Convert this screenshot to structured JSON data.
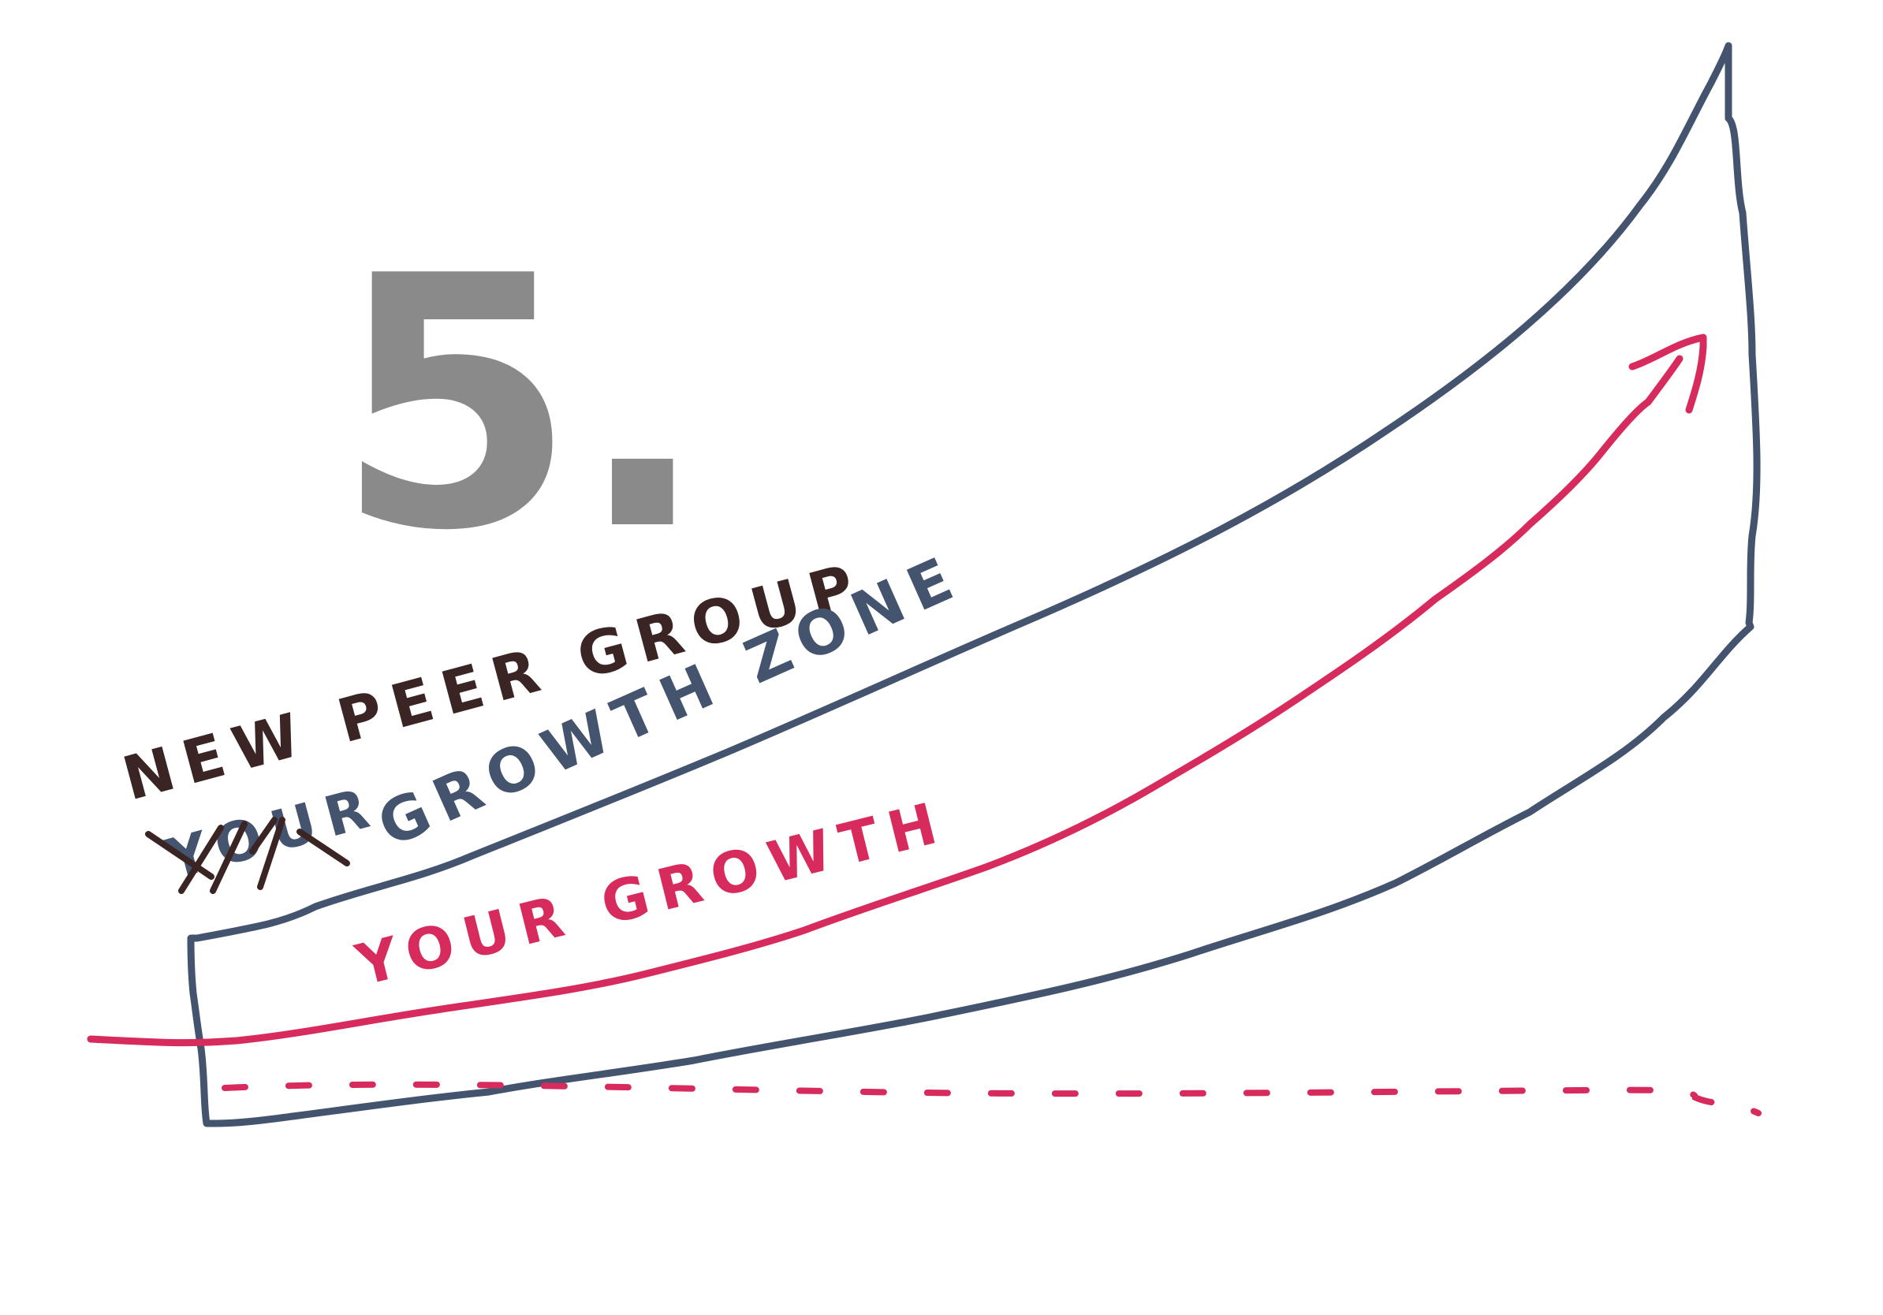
{
  "step_number": "5.",
  "labels": {
    "new_peer_group": "NEW PEER GROUP",
    "struck_text": "YOUR",
    "growth_zone": "GROWTH ZONE",
    "your_growth": "YOUR GROWTH"
  },
  "colors": {
    "background": "#ffffff",
    "step_number": "#8a8a8a",
    "zone_outline": "#44546e",
    "growth_line": "#d62b5c",
    "annotation_ink": "#3a2424"
  }
}
